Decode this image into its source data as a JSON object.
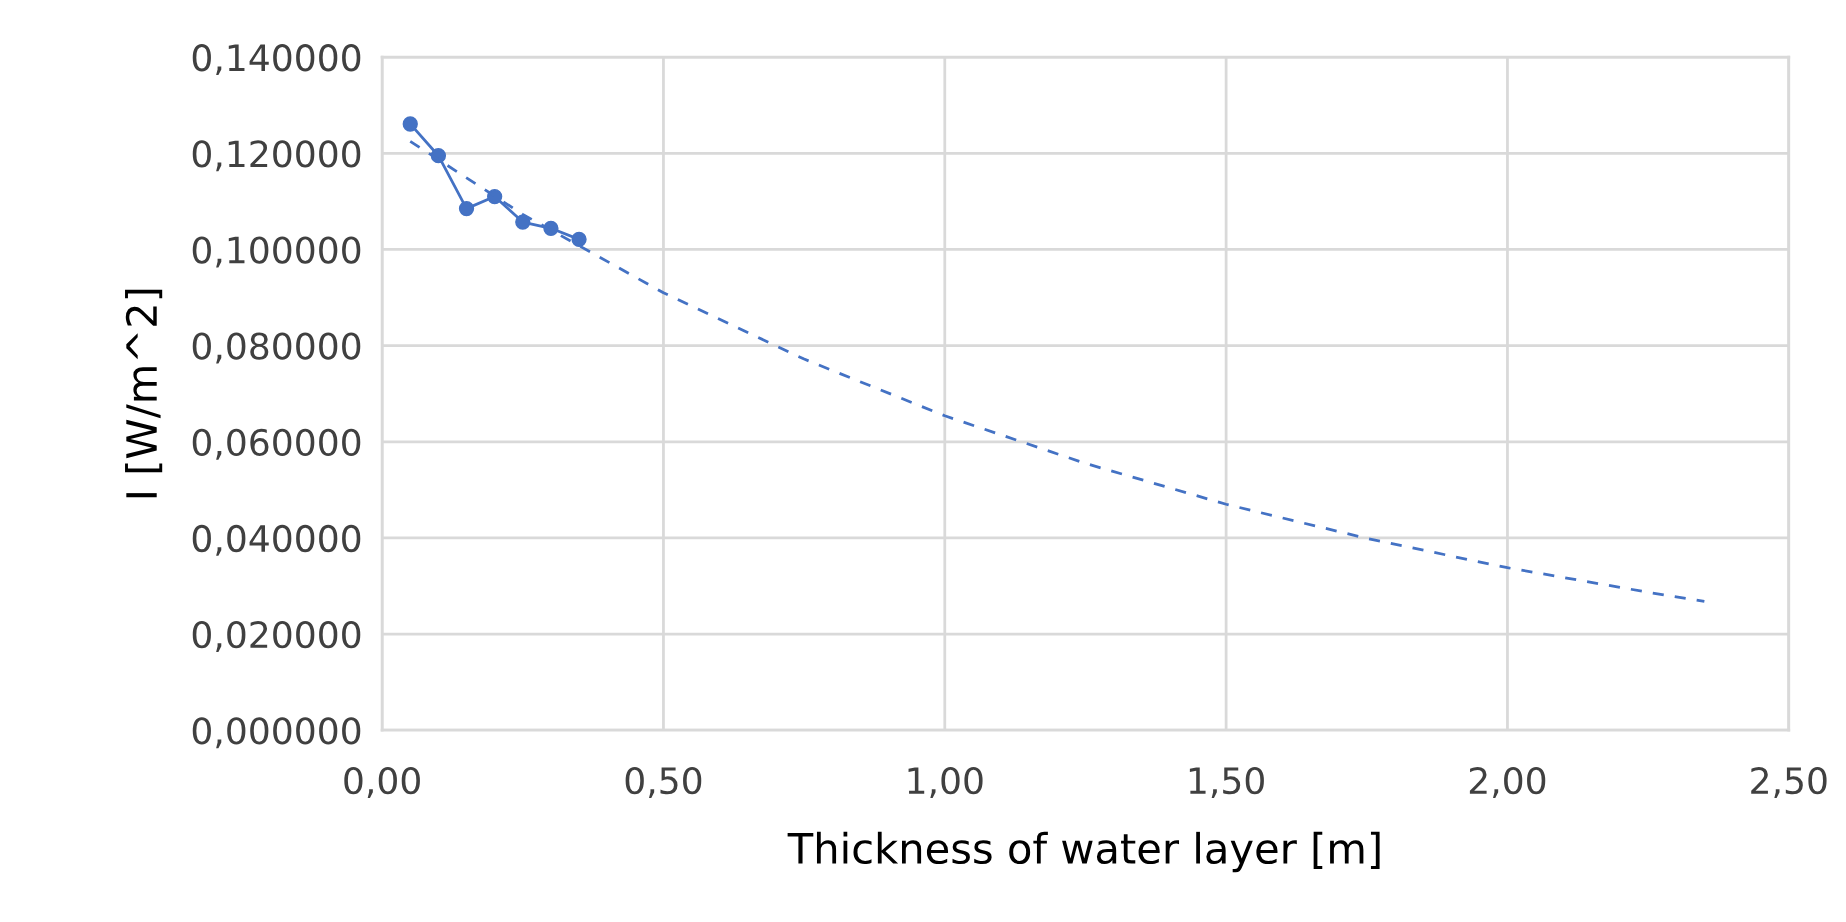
{
  "chart_data": {
    "type": "line",
    "xlabel": "Thickness of water layer [m]",
    "ylabel": "I [W/m^2]",
    "series": [
      {
        "color": "#4472c4",
        "marker": "circle",
        "line_style": "solid",
        "x": [
          0.05,
          0.1,
          0.15,
          0.2,
          0.25,
          0.3,
          0.35
        ],
        "values": [
          0.1261,
          0.1195,
          0.1085,
          0.111,
          0.1057,
          0.1044,
          0.1021
        ]
      },
      {
        "type": "line",
        "color": "#4472c4",
        "marker": "none",
        "line_style": "dashed",
        "x": [
          0.05,
          0.25,
          0.5,
          0.75,
          1.0,
          1.25,
          1.5,
          1.75,
          2.0,
          2.25,
          2.35
        ],
        "values": [
          0.1225,
          0.1073,
          0.091,
          0.0772,
          0.0654,
          0.0555,
          0.047,
          0.0399,
          0.0338,
          0.0287,
          0.0268
        ]
      }
    ],
    "xlim": [
      0,
      2.5
    ],
    "xticks": [
      {
        "value": 0,
        "label": "0,00"
      },
      {
        "value": 0.5,
        "label": "0,50"
      },
      {
        "value": 1.0,
        "label": "1,00"
      },
      {
        "value": 1.5,
        "label": "1,50"
      },
      {
        "value": 2.0,
        "label": "2,00"
      },
      {
        "value": 2.5,
        "label": "2,50"
      }
    ],
    "ylim": [
      0,
      0.14
    ],
    "yticks": [
      {
        "value": 0,
        "label": "0,000000"
      },
      {
        "value": 0.02,
        "label": "0,020000"
      },
      {
        "value": 0.04,
        "label": "0,040000"
      },
      {
        "value": 0.06,
        "label": "0,060000"
      },
      {
        "value": 0.08,
        "label": "0,080000"
      },
      {
        "value": 0.1,
        "label": "0,100000"
      },
      {
        "value": 0.12,
        "label": "0,120000"
      },
      {
        "value": 0.14,
        "label": "0,140000"
      }
    ],
    "grid": true
  }
}
